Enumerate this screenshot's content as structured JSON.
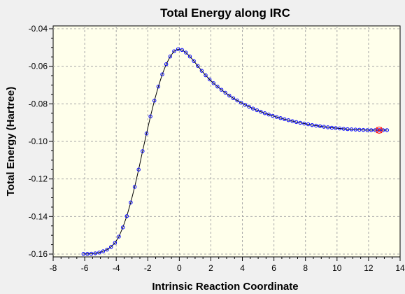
{
  "chart_data": {
    "type": "scatter",
    "title": "Total Energy along IRC",
    "xlabel": "Intrinsic Reaction Coordinate",
    "ylabel": "Total Energy (Hartree)",
    "xlim": [
      -8,
      14
    ],
    "ylim": [
      -0.1615,
      -0.0385
    ],
    "grid": true,
    "legend": "none",
    "xticks": [
      -8,
      -6,
      -4,
      -2,
      0,
      2,
      4,
      6,
      8,
      10,
      12,
      14
    ],
    "yticks": [
      -0.16,
      -0.14,
      -0.12,
      -0.1,
      -0.08,
      -0.06,
      -0.04
    ],
    "xtick_labels": [
      "-8",
      "-6",
      "-4",
      "-2",
      "0",
      "2",
      "4",
      "6",
      "8",
      "10",
      "12",
      "14"
    ],
    "ytick_labels": [
      "-0.16",
      "-0.14",
      "-0.12",
      "-0.10",
      "-0.08",
      "-0.06",
      "-0.04"
    ],
    "series": [
      {
        "color": "#0000ff",
        "line_color": "#000000",
        "x": [
          -6.08,
          -5.83,
          -5.58,
          -5.33,
          -5.08,
          -4.83,
          -4.58,
          -4.33,
          -4.08,
          -3.83,
          -3.58,
          -3.33,
          -3.08,
          -2.83,
          -2.58,
          -2.33,
          -2.08,
          -1.83,
          -1.58,
          -1.33,
          -1.08,
          -0.83,
          -0.58,
          -0.33,
          -0.08,
          0.17,
          0.42,
          0.67,
          0.92,
          1.17,
          1.42,
          1.67,
          1.92,
          2.17,
          2.42,
          2.67,
          2.92,
          3.17,
          3.42,
          3.67,
          3.92,
          4.17,
          4.42,
          4.67,
          4.92,
          5.17,
          5.42,
          5.67,
          5.92,
          6.17,
          6.42,
          6.67,
          6.92,
          7.17,
          7.42,
          7.67,
          7.92,
          8.17,
          8.42,
          8.67,
          8.92,
          9.17,
          9.42,
          9.67,
          9.92,
          10.17,
          10.42,
          10.67,
          10.92,
          11.17,
          11.42,
          11.67,
          11.92,
          12.17,
          12.42,
          12.67,
          12.92,
          13.17
        ],
        "y": [
          -0.1599,
          -0.1599,
          -0.1598,
          -0.1596,
          -0.1592,
          -0.1585,
          -0.1576,
          -0.1562,
          -0.154,
          -0.1507,
          -0.1458,
          -0.1398,
          -0.1325,
          -0.1242,
          -0.115,
          -0.1052,
          -0.0958,
          -0.0867,
          -0.0783,
          -0.0708,
          -0.0643,
          -0.0589,
          -0.0548,
          -0.052,
          -0.0509,
          -0.0513,
          -0.0527,
          -0.0548,
          -0.0572,
          -0.0598,
          -0.0624,
          -0.0648,
          -0.067,
          -0.069,
          -0.0708,
          -0.0725,
          -0.0741,
          -0.0756,
          -0.077,
          -0.0782,
          -0.0794,
          -0.0805,
          -0.0815,
          -0.0825,
          -0.0834,
          -0.0842,
          -0.085,
          -0.0857,
          -0.0864,
          -0.087,
          -0.0876,
          -0.0882,
          -0.0887,
          -0.0892,
          -0.0897,
          -0.0901,
          -0.0905,
          -0.0909,
          -0.0913,
          -0.0916,
          -0.0919,
          -0.0922,
          -0.0925,
          -0.0927,
          -0.0929,
          -0.0931,
          -0.0933,
          -0.0935,
          -0.0936,
          -0.0937,
          -0.0938,
          -0.0939,
          -0.094,
          -0.094,
          -0.094,
          -0.094,
          -0.094,
          -0.094
        ],
        "highlight_index": 75,
        "highlight_color": "#ff0000"
      }
    ]
  }
}
